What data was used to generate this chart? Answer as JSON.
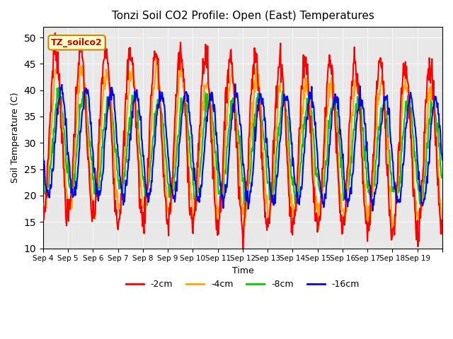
{
  "title": "Tonzi Soil CO2 Profile: Open (East) Temperatures",
  "xlabel": "Time",
  "ylabel": "Soil Temperature (C)",
  "ylim": [
    10,
    52
  ],
  "yticks": [
    10,
    15,
    20,
    25,
    30,
    35,
    40,
    45,
    50
  ],
  "background_color": "#e8e8e8",
  "legend_label": "TZ_soilco2",
  "series": {
    "-2cm": {
      "color": "#ff0000",
      "linewidth": 1.5
    },
    "-4cm": {
      "color": "#ffa500",
      "linewidth": 1.5
    },
    "-8cm": {
      "color": "#00cc00",
      "linewidth": 1.5
    },
    "-16cm": {
      "color": "#0000ff",
      "linewidth": 1.5
    }
  },
  "x_tick_positions": [
    0,
    1,
    2,
    3,
    4,
    5,
    6,
    7,
    8,
    9,
    10,
    11,
    12,
    13,
    14,
    15,
    16
  ],
  "x_tick_labels": [
    "Sep 4",
    "Sep 5",
    "Sep 6",
    "Sep 7",
    "Sep 8",
    "Sep 9",
    "Sep 10",
    "Sep 11",
    "Sep 12",
    "Sep 13",
    "Sep 14",
    "Sep 15",
    "Sep 16",
    "Sep 17",
    "Sep 18",
    "Sep 19",
    ""
  ],
  "legend_labels": [
    "-2cm",
    "-4cm",
    "-8cm",
    "-16cm"
  ]
}
